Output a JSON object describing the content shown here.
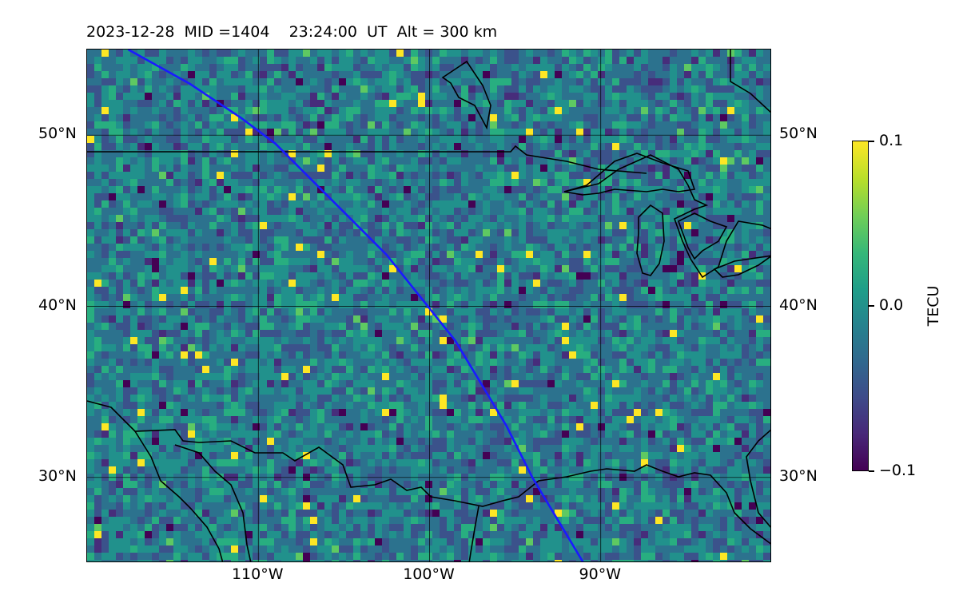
{
  "header": {
    "title": "2023-12-28  MID =1404    23:24:00  UT  Alt = 300 km"
  },
  "map": {
    "lon_range": [
      -120,
      -80
    ],
    "lat_range": [
      25,
      55
    ],
    "lat_ticks": [
      {
        "value": 50,
        "label": "50°N"
      },
      {
        "value": 40,
        "label": "40°N"
      },
      {
        "value": 30,
        "label": "30°N"
      }
    ],
    "lon_ticks": [
      {
        "value": -110,
        "label": "110°W"
      },
      {
        "value": -100,
        "label": "100°W"
      },
      {
        "value": -90,
        "label": "90°W"
      }
    ],
    "colors": {
      "track": "#1a1aff",
      "coastline": "#000000",
      "background_field": "#2a788e"
    },
    "satellite_track": [
      [
        -117.6,
        55
      ],
      [
        -114,
        53
      ],
      [
        -111,
        51
      ],
      [
        -109,
        49.5
      ],
      [
        -107,
        47.5
      ],
      [
        -104.5,
        45
      ],
      [
        -102.5,
        43
      ],
      [
        -100.5,
        40.5
      ],
      [
        -98.5,
        38
      ],
      [
        -97,
        35.5
      ],
      [
        -95.5,
        33
      ],
      [
        -94,
        30
      ],
      [
        -92.5,
        27.5
      ],
      [
        -91,
        25
      ]
    ]
  },
  "colorbar": {
    "title": "TECU",
    "min": -0.1,
    "max": 0.1,
    "ticks": [
      {
        "value": 0.1,
        "label": "0.1"
      },
      {
        "value": 0.0,
        "label": "0.0"
      },
      {
        "value": -0.1,
        "label": "−0.1"
      }
    ]
  }
}
